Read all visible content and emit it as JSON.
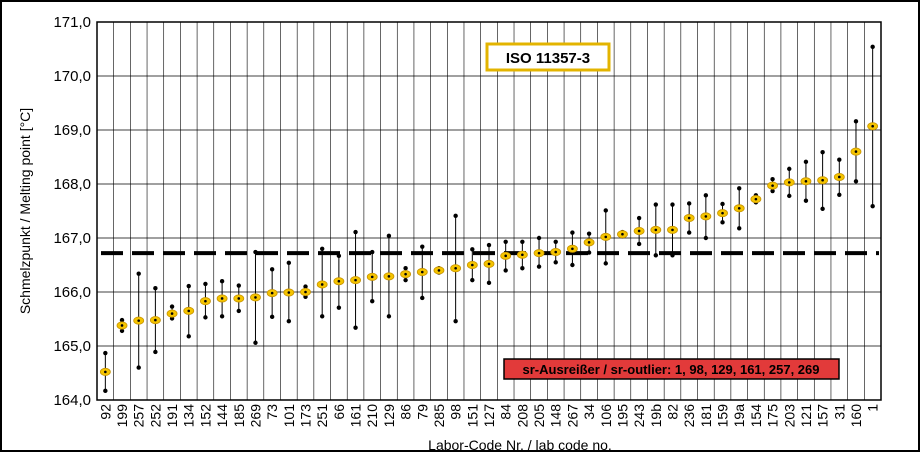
{
  "chart_data": {
    "type": "scatter",
    "ylabel": "Schmelzpunkt / Melting point [°C]",
    "xlabel": "Labor-Code Nr. / lab code no.",
    "ylim": [
      164.0,
      171.0
    ],
    "yticks": [
      "164,0",
      "165,0",
      "166,0",
      "167,0",
      "168,0",
      "169,0",
      "170,0",
      "171,0"
    ],
    "grid": true,
    "reference_line": 166.72,
    "annotations": {
      "standard": "ISO 11357-3",
      "outliers": "sr-Ausreißer / sr-outlier: 1, 98, 129, 161, 257, 269"
    },
    "colors": {
      "mean_marker": "#f5c400",
      "mean_border": "#c89400",
      "standard_box_border": "#e3b400",
      "outlier_box": "#e23a3a",
      "reference_line": "#000000",
      "grid": "#000000"
    },
    "categories": [
      "92",
      "199",
      "257",
      "252",
      "191",
      "134",
      "152",
      "144",
      "185",
      "269",
      "73",
      "101",
      "173",
      "251",
      "66",
      "161",
      "210",
      "129",
      "86",
      "79",
      "285",
      "98",
      "151",
      "127",
      "84",
      "208",
      "205",
      "148",
      "267",
      "34",
      "106",
      "195",
      "243",
      "19b",
      "82",
      "236",
      "181",
      "159",
      "19a",
      "154",
      "175",
      "203",
      "121",
      "157",
      "31",
      "160",
      "1"
    ],
    "mean": [
      164.52,
      165.38,
      165.47,
      165.48,
      165.6,
      165.65,
      165.83,
      165.88,
      165.88,
      165.9,
      165.98,
      165.99,
      166.0,
      166.14,
      166.2,
      166.22,
      166.28,
      166.29,
      166.33,
      166.37,
      166.4,
      166.44,
      166.5,
      166.52,
      166.67,
      166.69,
      166.72,
      166.74,
      166.8,
      166.92,
      167.02,
      167.07,
      167.13,
      167.15,
      167.15,
      167.37,
      167.4,
      167.46,
      167.55,
      167.72,
      167.97,
      168.03,
      168.05,
      168.07,
      168.13,
      168.6,
      169.07
    ],
    "upper": [
      164.87,
      165.48,
      166.34,
      166.07,
      165.73,
      166.11,
      166.15,
      166.2,
      166.12,
      166.74,
      166.42,
      166.54,
      166.1,
      166.8,
      166.67,
      167.11,
      166.74,
      167.04,
      166.44,
      166.84,
      166.44,
      167.41,
      166.79,
      166.87,
      166.93,
      166.93,
      167.0,
      166.93,
      167.1,
      167.08,
      167.51,
      167.11,
      167.37,
      167.62,
      167.62,
      167.64,
      167.79,
      167.63,
      167.92,
      167.79,
      168.09,
      168.28,
      168.41,
      168.59,
      168.45,
      169.16,
      170.54
    ],
    "lower": [
      164.17,
      165.28,
      164.6,
      164.89,
      165.51,
      165.18,
      165.53,
      165.55,
      165.65,
      165.06,
      165.54,
      165.46,
      165.91,
      165.55,
      165.71,
      165.34,
      165.83,
      165.55,
      166.22,
      165.89,
      166.36,
      165.46,
      166.22,
      166.17,
      166.4,
      166.44,
      166.47,
      166.55,
      166.5,
      166.73,
      166.53,
      167.03,
      166.89,
      166.68,
      166.68,
      167.1,
      167.0,
      167.29,
      167.18,
      167.66,
      167.87,
      167.78,
      167.69,
      167.54,
      167.8,
      168.05,
      167.59
    ]
  }
}
